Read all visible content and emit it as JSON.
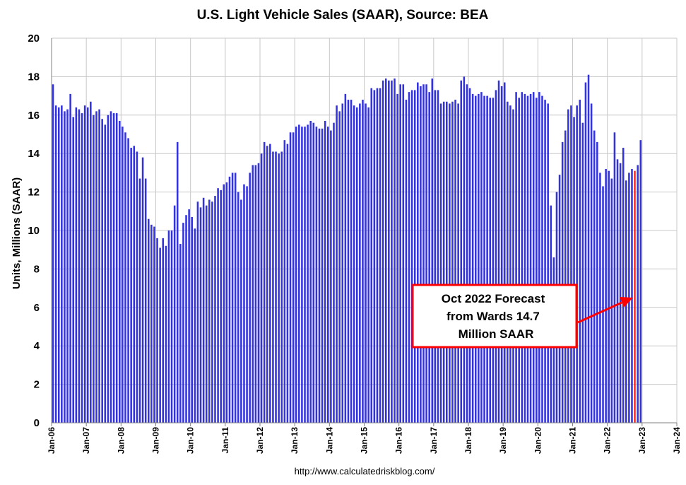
{
  "chart_data": {
    "type": "bar",
    "title": "U.S. Light Vehicle Sales (SAAR), Source: BEA",
    "ylabel": "Units, Millions (SAAR)",
    "xlabel": "",
    "ylim": [
      0,
      20
    ],
    "yticks": [
      0,
      2,
      4,
      6,
      8,
      10,
      12,
      14,
      16,
      18,
      20
    ],
    "xticks": [
      "Jan-06",
      "Jan-07",
      "Jan-08",
      "Jan-09",
      "Jan-10",
      "Jan-11",
      "Jan-12",
      "Jan-13",
      "Jan-14",
      "Jan-15",
      "Jan-16",
      "Jan-17",
      "Jan-18",
      "Jan-19",
      "Jan-20",
      "Jan-21",
      "Jan-22",
      "Jan-23",
      "Jan-24"
    ],
    "x_axis_months": 216,
    "x_start": "Jan-06",
    "grid": true,
    "bar_color": "#3333dd",
    "forecast_color": "#ff0000",
    "source": "http://www.calculatedriskblog.com/",
    "series": [
      {
        "values": [
          17.6,
          16.5,
          16.4,
          16.5,
          16.2,
          16.3,
          17.1,
          15.9,
          16.4,
          16.3,
          16.1,
          16.5,
          16.4,
          16.7,
          16.0,
          16.2,
          16.3,
          15.8,
          15.5,
          16.0,
          16.2,
          16.1,
          16.1,
          15.7,
          15.4,
          15.1,
          14.8,
          14.3,
          14.4,
          14.1,
          12.7,
          13.8,
          12.7,
          10.6,
          10.3,
          10.2,
          9.6,
          9.1,
          9.6,
          9.2,
          10.0,
          10.0,
          11.3,
          14.6,
          9.3,
          10.4,
          10.8,
          11.1,
          10.7,
          10.1,
          11.5,
          11.2,
          11.7,
          11.3,
          11.6,
          11.5,
          11.8,
          12.2,
          12.1,
          12.4,
          12.5,
          12.8,
          13.0,
          13.0,
          12.0,
          11.6,
          12.4,
          12.3,
          13.0,
          13.4,
          13.4,
          13.5,
          14.0,
          14.6,
          14.4,
          14.5,
          14.1,
          14.1,
          14.0,
          14.1,
          14.7,
          14.5,
          15.1,
          15.1,
          15.4,
          15.5,
          15.4,
          15.4,
          15.5,
          15.7,
          15.6,
          15.4,
          15.3,
          15.3,
          15.7,
          15.4,
          15.2,
          15.6,
          16.5,
          16.2,
          16.6,
          17.1,
          16.8,
          16.8,
          16.5,
          16.4,
          16.6,
          16.8,
          16.6,
          16.4,
          17.4,
          17.3,
          17.4,
          17.4,
          17.8,
          17.9,
          17.8,
          17.8,
          17.9,
          17.1,
          17.6,
          17.6,
          16.8,
          17.2,
          17.3,
          17.3,
          17.7,
          17.5,
          17.6,
          17.6,
          17.2,
          17.9,
          17.3,
          17.3,
          16.6,
          16.7,
          16.7,
          16.6,
          16.7,
          16.8,
          16.6,
          17.8,
          18.0,
          17.6,
          17.4,
          17.1,
          17.0,
          17.1,
          17.2,
          17.0,
          17.0,
          16.9,
          16.9,
          17.3,
          17.8,
          17.5,
          17.7,
          16.7,
          16.5,
          16.3,
          17.2,
          16.9,
          17.2,
          17.1,
          17.0,
          17.1,
          17.2,
          16.9,
          17.2,
          17.0,
          16.8,
          16.6,
          11.3,
          8.6,
          12.0,
          12.9,
          14.6,
          15.2,
          16.3,
          16.5,
          15.9,
          16.5,
          16.8,
          15.6,
          17.7,
          18.1,
          16.6,
          15.2,
          14.6,
          13.0,
          12.3,
          13.2,
          13.1,
          12.7,
          15.1,
          13.7,
          13.5,
          14.3,
          12.6,
          13.0,
          13.2,
          13.1,
          13.4,
          14.7
        ]
      }
    ],
    "forecast_index": 201,
    "annotation": {
      "lines": [
        "Oct 2022 Forecast",
        "from Wards 14.7",
        "Million SAAR"
      ],
      "box_color": "#ff0000",
      "arrow_color": "#ff0000"
    }
  }
}
